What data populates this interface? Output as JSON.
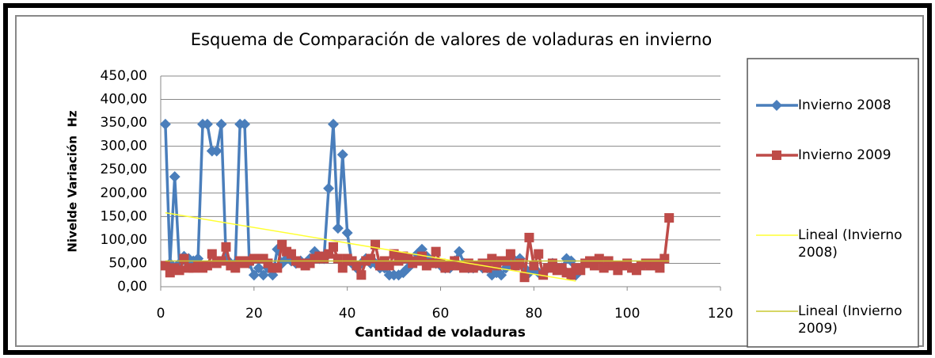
{
  "chart_data": {
    "type": "line",
    "title": "Esquema de Comparación de valores de voladuras en invierno",
    "x_label": "Cantidad de voladuras",
    "y_label": "Nivelde Variación  Hz",
    "xlim": [
      0,
      120
    ],
    "xticks": [
      0,
      20,
      40,
      60,
      80,
      100,
      120
    ],
    "ylim": [
      0,
      450
    ],
    "yticks": [
      {
        "value": 0,
        "label": "0,00"
      },
      {
        "value": 50,
        "label": "50,00"
      },
      {
        "value": 100,
        "label": "100,00"
      },
      {
        "value": 150,
        "label": "150,00"
      },
      {
        "value": 200,
        "label": "200,00"
      },
      {
        "value": 250,
        "label": "250,00"
      },
      {
        "value": 300,
        "label": "300,00"
      },
      {
        "value": 350,
        "label": "350,00"
      },
      {
        "value": 400,
        "label": "400,00"
      },
      {
        "value": 450,
        "label": "450,00"
      }
    ],
    "grid": true,
    "legend": "right",
    "series": [
      {
        "name": "Invierno 2008",
        "color": "#4a7ebb",
        "marker": "diamond",
        "x": [
          1,
          2,
          3,
          4,
          5,
          6,
          7,
          8,
          9,
          10,
          11,
          12,
          13,
          14,
          15,
          16,
          17,
          18,
          19,
          20,
          21,
          22,
          23,
          24,
          25,
          26,
          27,
          28,
          29,
          30,
          31,
          32,
          33,
          34,
          35,
          36,
          37,
          38,
          39,
          40,
          41,
          42,
          43,
          44,
          45,
          46,
          47,
          48,
          49,
          50,
          51,
          52,
          53,
          54,
          55,
          56,
          57,
          58,
          59,
          60,
          61,
          62,
          63,
          64,
          65,
          66,
          67,
          68,
          69,
          70,
          71,
          72,
          73,
          74,
          75,
          76,
          77,
          78,
          79,
          80,
          81,
          82,
          83,
          84,
          85,
          86,
          87,
          88,
          89
        ],
        "values": [
          347,
          50,
          235,
          50,
          65,
          60,
          55,
          60,
          347,
          347,
          290,
          290,
          347,
          60,
          50,
          50,
          347,
          347,
          50,
          25,
          40,
          25,
          40,
          25,
          80,
          50,
          60,
          55,
          50,
          55,
          50,
          60,
          75,
          60,
          60,
          210,
          347,
          125,
          282,
          115,
          50,
          40,
          50,
          60,
          50,
          50,
          40,
          40,
          25,
          25,
          25,
          30,
          40,
          50,
          70,
          80,
          65,
          55,
          50,
          45,
          40,
          40,
          55,
          75,
          50,
          40,
          40,
          45,
          40,
          40,
          25,
          30,
          25,
          40,
          50,
          55,
          60,
          40,
          30,
          40,
          30,
          30,
          40,
          50,
          40,
          40,
          60,
          55,
          25
        ]
      },
      {
        "name": "Invierno 2009",
        "color": "#be4b48",
        "marker": "square",
        "x": [
          1,
          2,
          3,
          4,
          5,
          6,
          7,
          8,
          9,
          10,
          11,
          12,
          13,
          14,
          15,
          16,
          17,
          18,
          19,
          20,
          21,
          22,
          23,
          24,
          25,
          26,
          27,
          28,
          29,
          30,
          31,
          32,
          33,
          34,
          35,
          36,
          37,
          38,
          39,
          40,
          41,
          42,
          43,
          44,
          45,
          46,
          47,
          48,
          49,
          50,
          51,
          52,
          53,
          54,
          55,
          56,
          57,
          58,
          59,
          60,
          61,
          62,
          63,
          64,
          65,
          66,
          67,
          68,
          69,
          70,
          71,
          72,
          73,
          74,
          75,
          76,
          77,
          78,
          79,
          80,
          81,
          82,
          83,
          84,
          85,
          86,
          87,
          88,
          89,
          90,
          91,
          92,
          93,
          94,
          95,
          96,
          97,
          98,
          99,
          100,
          101,
          102,
          103,
          104,
          105,
          106,
          107,
          108,
          109
        ],
        "values": [
          45,
          30,
          40,
          35,
          60,
          40,
          40,
          45,
          40,
          45,
          70,
          50,
          55,
          85,
          45,
          40,
          55,
          50,
          55,
          60,
          60,
          60,
          50,
          40,
          40,
          90,
          75,
          70,
          55,
          50,
          45,
          50,
          60,
          65,
          60,
          70,
          85,
          60,
          40,
          60,
          55,
          45,
          25,
          55,
          60,
          90,
          45,
          55,
          45,
          70,
          55,
          65,
          60,
          50,
          55,
          65,
          45,
          50,
          75,
          50,
          40,
          45,
          55,
          45,
          40,
          50,
          40,
          45,
          50,
          40,
          60,
          45,
          55,
          55,
          70,
          45,
          50,
          20,
          105,
          45,
          70,
          25,
          40,
          50,
          35,
          40,
          30,
          25,
          40,
          35,
          50,
          55,
          45,
          60,
          40,
          55,
          45,
          35,
          45,
          50,
          40,
          35,
          45,
          50,
          45,
          50,
          40,
          60,
          147
        ]
      },
      {
        "name": "Lineal (Invierno 2008)",
        "color": "#ffff33",
        "marker": "none",
        "x": [
          1,
          89
        ],
        "values": [
          158,
          12
        ]
      },
      {
        "name": "Lineal (Invierno 2009)",
        "color": "#c8c832",
        "marker": "none",
        "x": [
          1,
          109
        ],
        "values": [
          55,
          55
        ]
      }
    ]
  }
}
